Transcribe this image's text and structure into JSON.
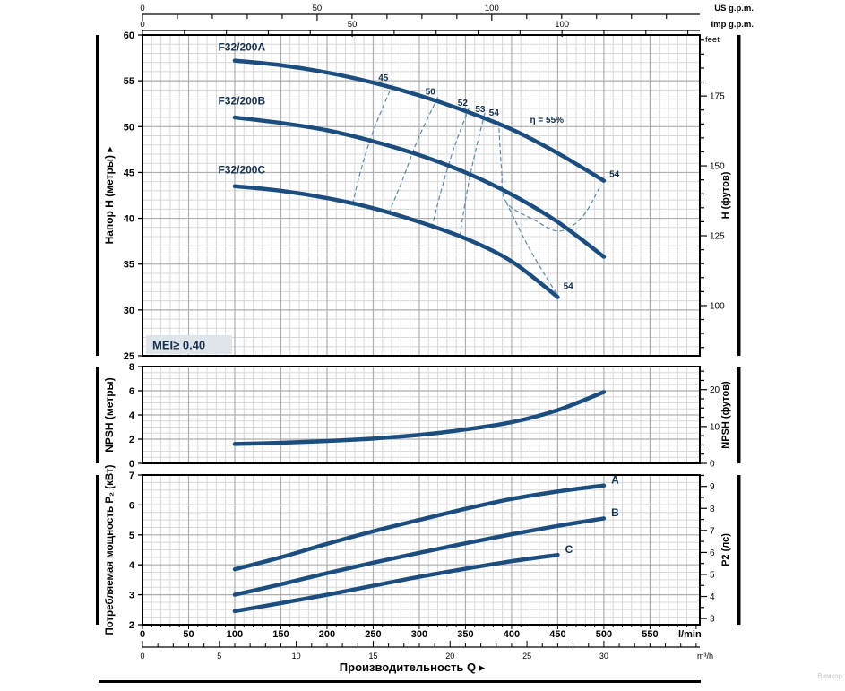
{
  "watermark": "Вимкор",
  "colors": {
    "curve": "#1b4e7f",
    "efficiency_line": "#5d88ad",
    "dark_label": "#14304e",
    "grid_minor": "#d8d8d8",
    "grid_major": "#aeaeae",
    "frame": "#000000",
    "tick_text": "#000000",
    "mei_bg": "#dfe5ea",
    "watermark_color": "#c6c6c6",
    "background": "#ffffff"
  },
  "top_axes": {
    "us_gpm": {
      "unit": "US g.p.m.",
      "labels": [
        0,
        50,
        100
      ],
      "minor_step": 10,
      "max_minor": 155,
      "lmin_per_unit": 3.78541
    },
    "imp_gpm": {
      "unit": "Imp g.p.m.",
      "labels": [
        0,
        50,
        100
      ],
      "minor_step": 10,
      "max_minor": 130,
      "lmin_per_unit": 4.54609
    }
  },
  "bottom_axes": {
    "lmin": {
      "unit": "l/min",
      "labels": [
        0,
        50,
        100,
        150,
        200,
        250,
        300,
        350,
        400,
        450,
        500,
        550
      ],
      "minor_step": 10,
      "max_minor": 600
    },
    "m3h": {
      "unit": "m³/h",
      "labels": [
        0,
        5,
        10,
        15,
        20,
        25,
        30
      ],
      "minor_step": 1,
      "max_minor": 36,
      "lmin_per_unit": 16.6667
    },
    "xlabel": "Производительность Q ▸"
  },
  "chart_data": [
    {
      "id": "head",
      "type": "line",
      "ylabel_left": "Напор H (метры) ▸",
      "ylabel_right": "Н (футов)",
      "right_unit_label": "feet",
      "xlabel": "Производительность Q",
      "x_unit": "l/min",
      "xlim": [
        0,
        604
      ],
      "ylim": [
        25,
        60
      ],
      "yticks": [
        25,
        30,
        35,
        40,
        45,
        50,
        55,
        60
      ],
      "y_minor": 1,
      "y_major": 5,
      "right_ticks": {
        "labels": [
          100,
          125,
          150,
          175
        ],
        "minor_step": 5,
        "m_per_unit": 0.3048
      },
      "mei_label": "MEI≥ 0.40",
      "series": [
        {
          "name": "F32/200A",
          "label": "F32/200A",
          "label_pos": [
            82,
            58.3
          ],
          "points": [
            [
              100,
              57.2
            ],
            [
              150,
              56.7
            ],
            [
              200,
              55.9
            ],
            [
              250,
              54.8
            ],
            [
              300,
              53.4
            ],
            [
              350,
              51.7
            ],
            [
              400,
              49.7
            ],
            [
              450,
              47.1
            ],
            [
              500,
              44.1
            ]
          ]
        },
        {
          "name": "F32/200B",
          "label": "F32/200B",
          "label_pos": [
            82,
            52.4
          ],
          "points": [
            [
              100,
              51.0
            ],
            [
              150,
              50.4
            ],
            [
              200,
              49.6
            ],
            [
              250,
              48.4
            ],
            [
              300,
              46.9
            ],
            [
              350,
              45.0
            ],
            [
              400,
              42.6
            ],
            [
              450,
              39.6
            ],
            [
              500,
              35.8
            ]
          ]
        },
        {
          "name": "F32/200C",
          "label": "F32/200C",
          "label_pos": [
            82,
            44.9
          ],
          "points": [
            [
              100,
              43.5
            ],
            [
              150,
              43.0
            ],
            [
              200,
              42.2
            ],
            [
              250,
              41.1
            ],
            [
              300,
              39.6
            ],
            [
              350,
              37.8
            ],
            [
              400,
              35.3
            ],
            [
              450,
              31.4
            ]
          ]
        }
      ],
      "efficiency_curves": [
        {
          "label": "45",
          "label_pos": [
            261,
            55.0
          ],
          "points": [
            [
              271,
              54.6
            ],
            [
              250,
              49.5
            ],
            [
              236,
              45.0
            ],
            [
              228,
              41.6
            ]
          ]
        },
        {
          "label": "50",
          "label_pos": [
            312,
            53.5
          ],
          "points": [
            [
              320,
              53.2
            ],
            [
              298,
              48.5
            ],
            [
              283,
              44.5
            ],
            [
              268,
              40.8
            ]
          ]
        },
        {
          "label": "52",
          "label_pos": [
            347,
            52.3
          ],
          "points": [
            [
              354,
              52.1
            ],
            [
              337,
              47.5
            ],
            [
              325,
              43.5
            ],
            [
              314,
              39.2
            ]
          ]
        },
        {
          "label": "53",
          "label_pos": [
            366,
            51.6
          ],
          "points": [
            [
              371,
              51.5
            ],
            [
              359,
              46.5
            ],
            [
              351,
              42.5
            ],
            [
              344,
              38.1
            ]
          ]
        },
        {
          "label": "54",
          "label_pos": [
            381,
            51.2
          ],
          "points": [
            [
              386,
              50.6
            ],
            [
              389,
              45.5
            ],
            [
              394,
              41.8
            ],
            [
              425,
              39.8
            ],
            [
              452,
              38.6
            ],
            [
              477,
              40.2
            ],
            [
              497,
              43.7
            ]
          ]
        },
        {
          "label": "",
          "label_pos": [
            0,
            0
          ],
          "points": [
            [
              394,
              41.8
            ],
            [
              415,
              37.5
            ],
            [
              435,
              34.0
            ],
            [
              452,
              31.3
            ]
          ]
        }
      ],
      "extra_labels": [
        {
          "text": "η = 55%",
          "pos": [
            420,
            50.4
          ],
          "anchor": "start"
        },
        {
          "text": "54",
          "pos": [
            506,
            44.5
          ],
          "anchor": "start"
        },
        {
          "text": "54",
          "pos": [
            456,
            32.3
          ],
          "anchor": "start"
        }
      ]
    },
    {
      "id": "npsh",
      "type": "line",
      "ylabel_left": "NPSH (метры)",
      "ylabel_right": "NPSH (футов)",
      "x_unit": "l/min",
      "xlim": [
        0,
        604
      ],
      "ylim": [
        0,
        8
      ],
      "yticks": [
        0,
        2,
        4,
        6,
        8
      ],
      "y_minor": 0.5,
      "y_major": 2,
      "right_ticks": {
        "labels": [
          0,
          10,
          20
        ],
        "minor_step": 2.5,
        "m_per_unit": 0.3048
      },
      "series": [
        {
          "name": "NPSH",
          "label": "",
          "label_pos": null,
          "points": [
            [
              100,
              1.6
            ],
            [
              150,
              1.7
            ],
            [
              200,
              1.85
            ],
            [
              250,
              2.05
            ],
            [
              300,
              2.35
            ],
            [
              350,
              2.8
            ],
            [
              400,
              3.4
            ],
            [
              450,
              4.4
            ],
            [
              500,
              5.9
            ]
          ]
        }
      ]
    },
    {
      "id": "p2",
      "type": "line",
      "ylabel_left": "Потребляемая мощность P₂ (кВт)",
      "ylabel_right": "P2 (лс)",
      "x_unit": "l/min",
      "xlim": [
        0,
        604
      ],
      "ylim": [
        2,
        7
      ],
      "yticks": [
        2,
        3,
        4,
        5,
        6,
        7
      ],
      "y_minor": 0.25,
      "y_major": 1,
      "right_ticks": {
        "labels": [
          3,
          4,
          5,
          6,
          7,
          8,
          9
        ],
        "minor_step": 0.5,
        "kw_per_unit": 0.73549875
      },
      "series": [
        {
          "name": "A",
          "label": "A",
          "label_pos": [
            508,
            6.72
          ],
          "points": [
            [
              100,
              3.85
            ],
            [
              150,
              4.25
            ],
            [
              200,
              4.7
            ],
            [
              250,
              5.12
            ],
            [
              300,
              5.5
            ],
            [
              350,
              5.87
            ],
            [
              400,
              6.2
            ],
            [
              450,
              6.45
            ],
            [
              500,
              6.65
            ]
          ]
        },
        {
          "name": "B",
          "label": "B",
          "label_pos": [
            508,
            5.62
          ],
          "points": [
            [
              100,
              3.0
            ],
            [
              150,
              3.35
            ],
            [
              200,
              3.72
            ],
            [
              250,
              4.07
            ],
            [
              300,
              4.4
            ],
            [
              350,
              4.72
            ],
            [
              400,
              5.02
            ],
            [
              450,
              5.3
            ],
            [
              500,
              5.55
            ]
          ]
        },
        {
          "name": "C",
          "label": "C",
          "label_pos": [
            458,
            4.4
          ],
          "points": [
            [
              100,
              2.45
            ],
            [
              150,
              2.72
            ],
            [
              200,
              3.0
            ],
            [
              250,
              3.3
            ],
            [
              300,
              3.6
            ],
            [
              350,
              3.87
            ],
            [
              400,
              4.12
            ],
            [
              450,
              4.33
            ]
          ]
        }
      ]
    }
  ]
}
